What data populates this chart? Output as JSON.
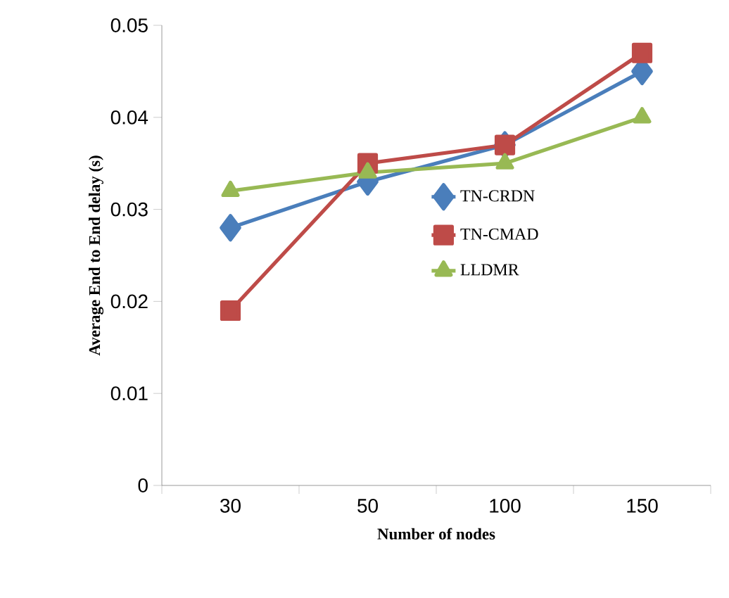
{
  "chart_data": {
    "type": "line",
    "xlabel": "Number of nodes",
    "ylabel": "Average End to End delay (s)",
    "categories": [
      "30",
      "50",
      "100",
      "150"
    ],
    "series": [
      {
        "name": "TN-CRDN",
        "color": "#4a7ebb",
        "marker": "diamond",
        "values": [
          0.028,
          0.033,
          0.037,
          0.045
        ]
      },
      {
        "name": "TN-CMAD",
        "color": "#be4b48",
        "marker": "square",
        "values": [
          0.019,
          0.035,
          0.037,
          0.047
        ]
      },
      {
        "name": "LLDMR",
        "color": "#98b954",
        "marker": "triangle",
        "values": [
          0.032,
          0.034,
          0.035,
          0.04
        ]
      }
    ],
    "ylim": [
      0,
      0.05
    ],
    "yticks": [
      0,
      0.01,
      0.02,
      0.03,
      0.04,
      0.05
    ],
    "grid": false,
    "legend": "center",
    "line_style": "solid"
  }
}
